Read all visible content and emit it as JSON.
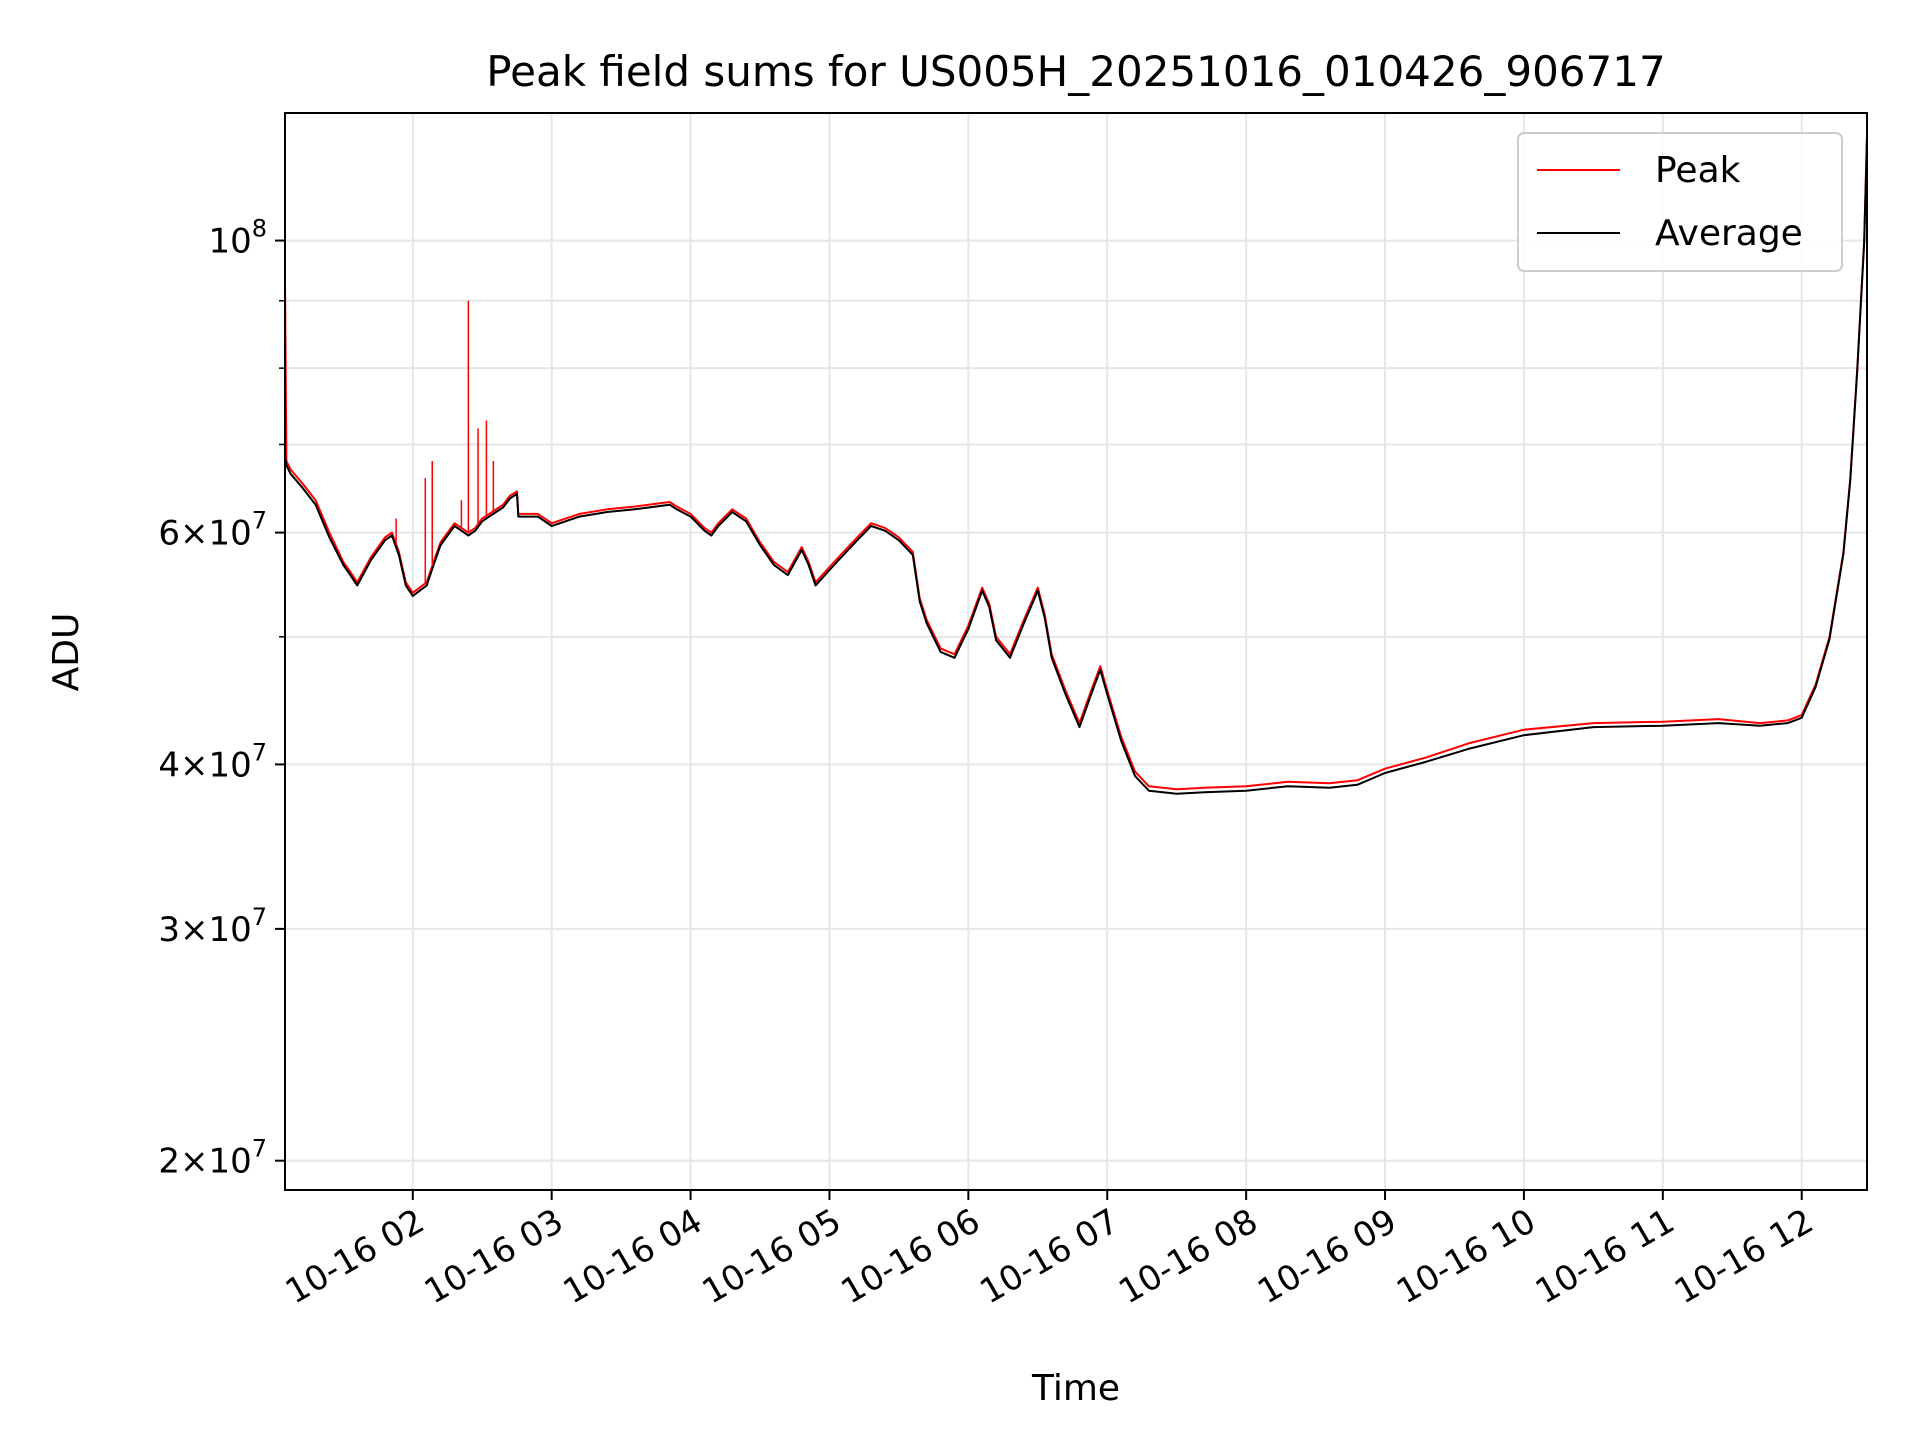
{
  "chart_data": {
    "type": "line",
    "title": "Peak field sums for US005H_20251016_010426_906717",
    "xlabel": "Time",
    "ylabel": "ADU",
    "x_tick_labels": [
      "10-16 02",
      "10-16 03",
      "10-16 04",
      "10-16 05",
      "10-16 06",
      "10-16 07",
      "10-16 08",
      "10-16 09",
      "10-16 10",
      "10-16 11",
      "10-16 12"
    ],
    "x_ticks_hours": [
      2,
      3,
      4,
      5,
      6,
      7,
      8,
      9,
      10,
      11,
      12
    ],
    "xlim_hours": [
      1.08,
      12.47
    ],
    "y_scale": "log",
    "ylim": [
      19000000,
      125000000
    ],
    "y_major_ticks": [
      {
        "value": 100000000,
        "mantissa": "",
        "base": "10",
        "exp": "8"
      },
      {
        "value": 60000000,
        "mantissa": "6",
        "base": "10",
        "exp": "7"
      },
      {
        "value": 40000000,
        "mantissa": "4",
        "base": "10",
        "exp": "7"
      },
      {
        "value": 30000000,
        "mantissa": "3",
        "base": "10",
        "exp": "7"
      },
      {
        "value": 20000000,
        "mantissa": "2",
        "base": "10",
        "exp": "7"
      }
    ],
    "y_minor_ticks": [
      50000000,
      70000000,
      80000000,
      90000000
    ],
    "grid": true,
    "legend_position": "top-right",
    "series": [
      {
        "name": "Peak",
        "color": "#ff0000",
        "x_hours": [
          1.08,
          1.09,
          1.12,
          1.2,
          1.3,
          1.4,
          1.5,
          1.55,
          1.6,
          1.7,
          1.8,
          1.85,
          1.9,
          1.95,
          2.0,
          2.05,
          2.1,
          2.15,
          2.2,
          2.3,
          2.35,
          2.4,
          2.45,
          2.5,
          2.55,
          2.6,
          2.65,
          2.7,
          2.75,
          2.76,
          2.8,
          2.9,
          3.0,
          3.2,
          3.4,
          3.6,
          3.8,
          3.85,
          3.9,
          4.0,
          4.1,
          4.15,
          4.2,
          4.3,
          4.4,
          4.5,
          4.6,
          4.7,
          4.8,
          4.85,
          4.9,
          5.0,
          5.1,
          5.2,
          5.3,
          5.4,
          5.5,
          5.6,
          5.65,
          5.7,
          5.8,
          5.9,
          6.0,
          6.1,
          6.15,
          6.2,
          6.3,
          6.4,
          6.5,
          6.55,
          6.6,
          6.7,
          6.8,
          6.9,
          6.95,
          7.0,
          7.1,
          7.2,
          7.3,
          7.5,
          7.7,
          8.0,
          8.3,
          8.6,
          8.8,
          9.0,
          9.3,
          9.6,
          10.0,
          10.5,
          11.0,
          11.4,
          11.7,
          11.9,
          12.0,
          12.1,
          12.2,
          12.3,
          12.35,
          12.4,
          12.45,
          12.47
        ],
        "values": [
          93000000,
          68000000,
          67000000,
          65500000,
          63500000,
          60000000,
          57000000,
          56000000,
          55000000,
          57500000,
          59500000,
          60000000,
          58000000,
          55000000,
          54000000,
          54500000,
          55000000,
          57000000,
          59000000,
          61000000,
          60500000,
          60000000,
          60500000,
          61500000,
          62000000,
          62500000,
          63000000,
          64000000,
          64500000,
          62000000,
          62000000,
          62000000,
          61000000,
          62000000,
          62500000,
          62800000,
          63200000,
          63300000,
          62800000,
          62000000,
          60500000,
          60000000,
          61000000,
          62500000,
          61500000,
          59000000,
          57000000,
          56000000,
          58500000,
          57000000,
          55000000,
          56500000,
          58000000,
          59500000,
          61000000,
          60500000,
          59500000,
          58000000,
          53500000,
          51500000,
          49000000,
          48500000,
          51000000,
          54500000,
          53000000,
          50000000,
          48500000,
          51500000,
          54500000,
          52000000,
          48500000,
          45500000,
          43000000,
          46000000,
          47500000,
          45500000,
          42000000,
          39500000,
          38500000,
          38300000,
          38400000,
          38500000,
          38800000,
          38700000,
          38900000,
          39700000,
          40500000,
          41500000,
          42500000,
          43000000,
          43100000,
          43300000,
          43000000,
          43200000,
          43600000,
          46000000,
          50000000,
          58000000,
          66000000,
          80000000,
          100000000,
          120000000
        ]
      },
      {
        "name": "Average",
        "color": "#000000",
        "x_hours": [
          1.08,
          1.09,
          1.12,
          1.2,
          1.3,
          1.4,
          1.5,
          1.55,
          1.6,
          1.7,
          1.8,
          1.85,
          1.9,
          1.95,
          2.0,
          2.05,
          2.1,
          2.15,
          2.2,
          2.3,
          2.35,
          2.4,
          2.45,
          2.5,
          2.55,
          2.6,
          2.65,
          2.7,
          2.75,
          2.76,
          2.8,
          2.9,
          3.0,
          3.2,
          3.4,
          3.6,
          3.8,
          3.85,
          3.9,
          4.0,
          4.1,
          4.15,
          4.2,
          4.3,
          4.4,
          4.5,
          4.6,
          4.7,
          4.8,
          4.85,
          4.9,
          5.0,
          5.1,
          5.2,
          5.3,
          5.4,
          5.5,
          5.6,
          5.65,
          5.7,
          5.8,
          5.9,
          6.0,
          6.1,
          6.15,
          6.2,
          6.3,
          6.4,
          6.5,
          6.55,
          6.6,
          6.7,
          6.8,
          6.9,
          6.95,
          7.0,
          7.1,
          7.2,
          7.3,
          7.5,
          7.7,
          8.0,
          8.3,
          8.6,
          8.8,
          9.0,
          9.3,
          9.6,
          10.0,
          10.5,
          11.0,
          11.4,
          11.7,
          11.9,
          12.0,
          12.1,
          12.2,
          12.3,
          12.35,
          12.4,
          12.45,
          12.47
        ],
        "values": [
          68500000,
          67500000,
          66500000,
          65000000,
          63000000,
          59500000,
          56700000,
          55700000,
          54700000,
          57200000,
          59200000,
          59700000,
          57700000,
          54700000,
          53700000,
          54200000,
          54700000,
          56700000,
          58700000,
          60700000,
          60200000,
          59700000,
          60200000,
          61200000,
          61700000,
          62200000,
          62700000,
          63700000,
          64200000,
          61700000,
          61700000,
          61700000,
          60700000,
          61700000,
          62200000,
          62500000,
          62900000,
          63000000,
          62500000,
          61700000,
          60200000,
          59700000,
          60700000,
          62200000,
          61200000,
          58700000,
          56700000,
          55700000,
          58200000,
          56700000,
          54700000,
          56200000,
          57700000,
          59200000,
          60700000,
          60200000,
          59200000,
          57700000,
          53200000,
          51200000,
          48700000,
          48200000,
          50700000,
          54200000,
          52700000,
          49700000,
          48200000,
          51200000,
          54200000,
          51700000,
          48200000,
          45200000,
          42700000,
          45700000,
          47200000,
          45200000,
          41700000,
          39200000,
          38200000,
          38000000,
          38100000,
          38200000,
          38500000,
          38400000,
          38600000,
          39400000,
          40200000,
          41100000,
          42100000,
          42700000,
          42800000,
          43000000,
          42800000,
          43000000,
          43400000,
          45800000,
          49800000,
          57800000,
          65800000,
          79800000,
          99800000,
          120000000
        ]
      }
    ],
    "spikes": {
      "series": "Peak",
      "x_hours": [
        1.08,
        1.88,
        2.09,
        2.14,
        2.35,
        2.4,
        2.47,
        2.53,
        2.58
      ],
      "values": [
        93000000,
        61500000,
        66000000,
        68000000,
        63500000,
        90000000,
        72000000,
        73000000,
        68000000
      ]
    }
  }
}
